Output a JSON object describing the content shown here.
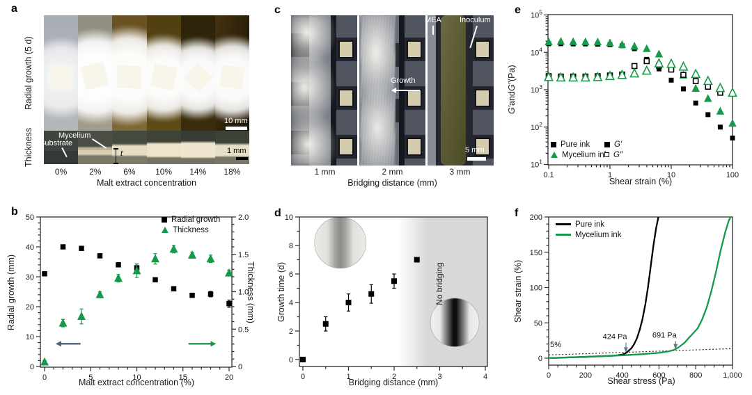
{
  "colors": {
    "accent_green": "#169a4a",
    "annotation_arrow": "#5a7b94",
    "shade_gray": "#d8d8d8",
    "arrow_slate": "#4d5e70"
  },
  "panels": {
    "a": {
      "letter": "a",
      "row_label_top": "Radial growth (5 d)",
      "row_label_bottom": "Thickness",
      "xlabel": "Malt extract concentration",
      "ticks": [
        "0%",
        "2%",
        "6%",
        "10%",
        "14%",
        "18%"
      ],
      "scalebar_top": "10 mm",
      "scalebar_bottom": "1 mm",
      "label_mycelium": "Mycelium",
      "label_substrate": "Substrate",
      "label_t": "t"
    },
    "b": {
      "letter": "b"
    },
    "c": {
      "letter": "c",
      "xlabel": "Bridging distance (mm)",
      "ticks": [
        "1 mm",
        "2 mm",
        "3 mm"
      ],
      "label_mea": "MEA",
      "label_inoculum": "Inoculum",
      "label_growth": "Growth",
      "scalebar": "5 mm"
    },
    "d": {
      "letter": "d"
    },
    "e": {
      "letter": "e"
    },
    "f": {
      "letter": "f"
    }
  },
  "chart_data": [
    {
      "id": "b",
      "type": "scatter",
      "xlabel": "Malt extract concentration (%)",
      "ylabel_left": "Radial growth (mm)",
      "ylabel_right": "Thickness (mm)",
      "xlim": [
        0,
        20
      ],
      "ylim_left": [
        0,
        50
      ],
      "ylim_right": [
        0,
        2.0
      ],
      "xticks": [
        0,
        5,
        10,
        15,
        20
      ],
      "xminor": 1,
      "yticks_left": [
        0,
        10,
        20,
        30,
        40,
        50
      ],
      "yminor_left": 2,
      "yticks_right": [
        0,
        0.5,
        1.0,
        1.5,
        2.0
      ],
      "yminor_right": 0.1,
      "ytick_right_labels": [
        "0",
        "0.5",
        "1.0",
        "1.5",
        "2.0"
      ],
      "legend": [
        {
          "label": "Radial growth",
          "marker": "square",
          "color": "#000000",
          "filled": true
        },
        {
          "label": "Thickness",
          "marker": "triangle",
          "color": "#169a4a",
          "filled": true
        }
      ],
      "series": [
        {
          "name": "Radial growth",
          "axis": "left",
          "marker": "square",
          "color": "#000000",
          "filled": true,
          "x": [
            0,
            2,
            4,
            6,
            8,
            10,
            12,
            14,
            16,
            18,
            20
          ],
          "y": [
            31,
            40,
            39.5,
            37,
            34,
            33,
            29,
            26,
            23.8,
            24.2,
            21
          ],
          "err": [
            0.6,
            0.5,
            0.6,
            0.5,
            0.5,
            1.3,
            0.6,
            0.7,
            0.5,
            0.9,
            1.2
          ]
        },
        {
          "name": "Thickness",
          "axis": "right",
          "marker": "triangle",
          "color": "#169a4a",
          "filled": true,
          "x": [
            0,
            2,
            4,
            6,
            8,
            10,
            12,
            14,
            16,
            18,
            20
          ],
          "y": [
            0.06,
            0.58,
            0.67,
            0.96,
            1.18,
            1.28,
            1.44,
            1.57,
            1.49,
            1.44,
            1.25
          ],
          "err": [
            0.02,
            0.05,
            0.1,
            0.04,
            0.05,
            0.09,
            0.07,
            0.05,
            0.04,
            0.05,
            0.04
          ]
        }
      ],
      "arrows": [
        {
          "x1": 3.9,
          "x2": 1.2,
          "y": 7.6,
          "color": "#4d5e70"
        },
        {
          "x1": 15.6,
          "x2": 18.6,
          "y": 7.6,
          "color": "#169a4a"
        }
      ]
    },
    {
      "id": "d",
      "type": "scatter",
      "xlabel": "Bridging distance (mm)",
      "ylabel": "Growth time (d)",
      "xlim": [
        0,
        4
      ],
      "ylim": [
        0,
        10
      ],
      "xticks": [
        0,
        1,
        2,
        3,
        4
      ],
      "xminor": 0.5,
      "yticks": [
        0,
        2,
        4,
        6,
        8,
        10
      ],
      "yminor": 1,
      "series": [
        {
          "name": "Growth time",
          "marker": "square",
          "color": "#000000",
          "filled": true,
          "x": [
            0,
            0.5,
            1,
            1.5,
            2,
            2.5
          ],
          "y": [
            0,
            2.5,
            4,
            4.6,
            5.5,
            7
          ],
          "err": [
            0,
            0.5,
            0.6,
            0.65,
            0.5,
            0
          ]
        }
      ],
      "shade": {
        "start": 2.1,
        "full": 2.65,
        "color": "#d8d8d8",
        "label": "No bridging"
      },
      "insets": [
        {
          "cx": 0.82,
          "cy": 8.2,
          "r": 37,
          "style": "light"
        },
        {
          "cx": 3.33,
          "cy": 2.6,
          "r": 35,
          "style": "dark"
        }
      ]
    },
    {
      "id": "e",
      "type": "loglog",
      "xlabel": "Shear strain (%)",
      "ylabel_parts": [
        "G′",
        " and ",
        "G″",
        " (Pa)"
      ],
      "xlim": [
        0.1,
        100
      ],
      "ylim": [
        10,
        100000
      ],
      "xticks": [
        0.1,
        1,
        10,
        100
      ],
      "xtick_labels": [
        "0.1",
        "1",
        "10",
        "100"
      ],
      "ytick_exponents": [
        1,
        2,
        3,
        4,
        5
      ],
      "x": [
        0.1,
        0.158,
        0.251,
        0.398,
        0.631,
        1,
        1.58,
        2.51,
        3.98,
        6.31,
        10,
        15.8,
        25.1,
        39.8,
        63.1,
        100
      ],
      "series": [
        {
          "name": "Pure ink G′",
          "marker": "square",
          "color": "#000000",
          "filled": true,
          "y": [
            17000,
            17000,
            16800,
            16800,
            16500,
            16000,
            15000,
            12500,
            6500,
            3600,
            1800,
            1050,
            440,
            215,
            100,
            51
          ]
        },
        {
          "name": "Mycelium ink G′",
          "marker": "triangle",
          "color": "#169a4a",
          "filled": true,
          "y": [
            19000,
            19500,
            19200,
            19000,
            18800,
            17800,
            16000,
            14500,
            12500,
            9000,
            4800,
            2450,
            1080,
            580,
            265,
            126
          ]
        },
        {
          "name": "Pure ink G″",
          "marker": "square",
          "color": "#000000",
          "filled": false,
          "y": [
            2300,
            2250,
            2250,
            2250,
            2300,
            2400,
            2550,
            4300,
            5800,
            4400,
            3450,
            2500,
            1700,
            1200,
            830,
            null
          ]
        },
        {
          "name": "Mycelium ink G″",
          "marker": "triangle",
          "color": "#169a4a",
          "filled": false,
          "y": [
            2150,
            2100,
            2100,
            2100,
            2150,
            2300,
            2450,
            2700,
            3200,
            5000,
            4900,
            4100,
            2600,
            1700,
            1100,
            820
          ]
        }
      ],
      "legend_col1": [
        {
          "label": "Pure ink",
          "marker": "square",
          "color": "#000000",
          "filled": true
        },
        {
          "label": "Mycelium ink",
          "marker": "triangle",
          "color": "#169a4a",
          "filled": true
        }
      ],
      "legend_col2": [
        {
          "label": "G′",
          "marker": "square",
          "color": "#000000",
          "filled": true
        },
        {
          "label": "G″",
          "marker": "square",
          "color": "#000000",
          "filled": false
        }
      ]
    },
    {
      "id": "f",
      "type": "line",
      "xlabel": "Shear stress (Pa)",
      "ylabel": "Shear strain (%)",
      "xlim": [
        0,
        1000
      ],
      "ylim": [
        0,
        200
      ],
      "xticks": [
        0,
        200,
        400,
        600,
        800,
        1000
      ],
      "xtick_labels": [
        "0",
        "200",
        "400",
        "600",
        "800",
        "1,000"
      ],
      "xminor": 50,
      "yticks": [
        0,
        50,
        100,
        150,
        200
      ],
      "yminor": 10,
      "series": [
        {
          "name": "Pure ink",
          "color": "#000000",
          "points": [
            [
              0,
              0
            ],
            [
              100,
              1
            ],
            [
              200,
              1.8
            ],
            [
              300,
              2.8
            ],
            [
              360,
              3.6
            ],
            [
              400,
              5
            ],
            [
              415,
              6.5
            ],
            [
              424,
              8
            ],
            [
              435,
              10.5
            ],
            [
              450,
              14
            ],
            [
              465,
              20
            ],
            [
              480,
              28
            ],
            [
              495,
              40
            ],
            [
              510,
              55
            ],
            [
              525,
              75
            ],
            [
              540,
              100
            ],
            [
              555,
              130
            ],
            [
              570,
              160
            ],
            [
              585,
              185
            ],
            [
              597,
              200
            ]
          ]
        },
        {
          "name": "Mycelium ink",
          "color": "#169a4a",
          "points": [
            [
              0,
              0
            ],
            [
              100,
              1
            ],
            [
              200,
              2
            ],
            [
              300,
              3
            ],
            [
              400,
              4
            ],
            [
              500,
              5.5
            ],
            [
              600,
              7.5
            ],
            [
              650,
              9.5
            ],
            [
              680,
              11.5
            ],
            [
              691,
              13
            ],
            [
              705,
              15
            ],
            [
              720,
              18
            ],
            [
              740,
              22
            ],
            [
              760,
              28
            ],
            [
              785,
              35
            ],
            [
              810,
              42
            ],
            [
              835,
              55
            ],
            [
              860,
              72
            ],
            [
              885,
              95
            ],
            [
              910,
              122
            ],
            [
              935,
              152
            ],
            [
              960,
              178
            ],
            [
              980,
              195
            ],
            [
              990,
              200
            ]
          ]
        }
      ],
      "dotted": {
        "points": [
          [
            0,
            4.5
          ],
          [
            1000,
            13.5
          ]
        ],
        "label": "5%"
      },
      "legend": [
        {
          "label": "Pure ink",
          "color": "#000000"
        },
        {
          "label": "Mycelium ink",
          "color": "#169a4a"
        }
      ],
      "annotations": [
        {
          "text": "424 Pa",
          "lx": 360,
          "ly": 27,
          "tx": 420,
          "ty": 9,
          "arrow": true
        },
        {
          "text": "691 Pa",
          "lx": 630,
          "ly": 29,
          "tx": 690,
          "ty": 13.5,
          "arrow": true
        },
        {
          "text": "5%",
          "lx": 8,
          "ly": 16,
          "arrow": false
        }
      ]
    }
  ]
}
